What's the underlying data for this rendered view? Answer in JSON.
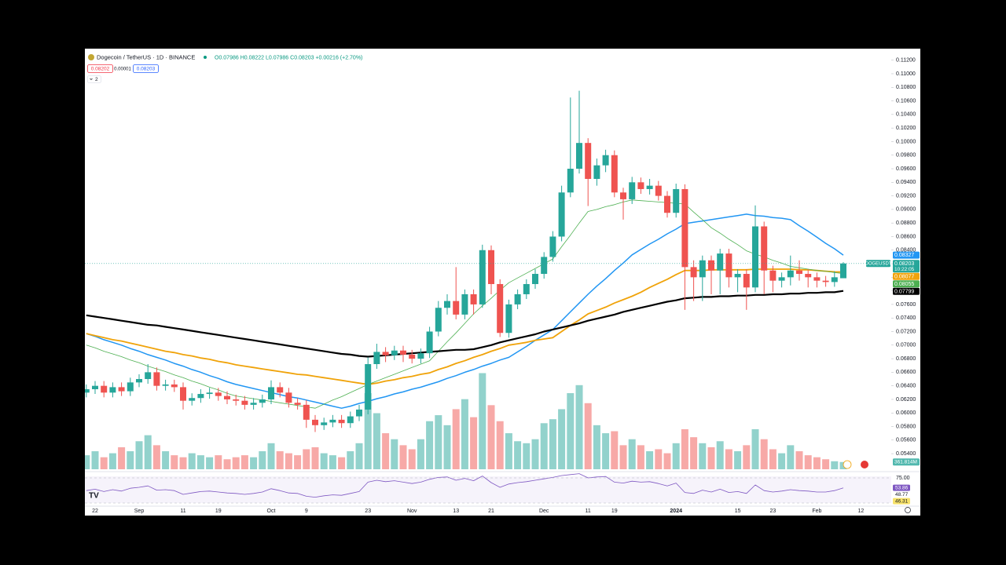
{
  "header": {
    "symbol": "Dogecoin / TetherUS · 1D · BINANCE",
    "ohlc": "O0.07986 H0.08222 L0.07986 C0.08203 +0.00216 (+2.70%)",
    "bid": "0.08202",
    "spread": "0.00001",
    "ask": "0.08203",
    "hidden_indicators": "2"
  },
  "chart_data": {
    "type": "candlestick",
    "categories": [
      null,
      "22",
      null,
      null,
      null,
      null,
      "Sep",
      null,
      null,
      null,
      null,
      "11",
      null,
      null,
      null,
      "19",
      null,
      null,
      null,
      null,
      null,
      "Oct",
      null,
      null,
      null,
      "9",
      null,
      null,
      null,
      null,
      null,
      null,
      "23",
      null,
      null,
      null,
      null,
      "Nov",
      null,
      null,
      null,
      null,
      "13",
      null,
      null,
      null,
      "21",
      null,
      null,
      null,
      null,
      null,
      "Dec",
      null,
      null,
      null,
      null,
      "11",
      null,
      null,
      "19",
      null,
      null,
      null,
      null,
      null,
      null,
      "2024",
      null,
      null,
      null,
      null,
      null,
      null,
      "15",
      null,
      null,
      null,
      "23",
      null,
      null,
      null,
      null,
      "Feb",
      null,
      null,
      null,
      null,
      "12"
    ],
    "open": [
      0.063,
      0.0635,
      0.064,
      0.063,
      0.0638,
      0.0632,
      0.0645,
      0.065,
      0.066,
      0.064,
      0.0642,
      0.0638,
      0.0618,
      0.0622,
      0.0628,
      0.063,
      0.0625,
      0.062,
      0.0618,
      0.0612,
      0.0615,
      0.062,
      0.0638,
      0.063,
      0.0615,
      0.0612,
      0.059,
      0.0582,
      0.0586,
      0.059,
      0.0585,
      0.0595,
      0.0605,
      0.0672,
      0.069,
      0.0685,
      0.0692,
      0.0686,
      0.068,
      0.0688,
      0.072,
      0.0755,
      0.0765,
      0.0745,
      0.0775,
      0.076,
      0.084,
      0.079,
      0.0718,
      0.076,
      0.0775,
      0.079,
      0.0805,
      0.083,
      0.086,
      0.0925,
      0.096,
      0.0998,
      0.0945,
      0.0965,
      0.098,
      0.0925,
      0.0915,
      0.094,
      0.093,
      0.0935,
      0.092,
      0.0895,
      0.093,
      0.0815,
      0.08,
      0.0825,
      0.081,
      0.0835,
      0.08,
      0.0805,
      0.0785,
      0.0875,
      0.081,
      0.0795,
      0.08,
      0.081,
      0.0805,
      0.08,
      0.0795,
      0.0793,
      0.07986,
      null,
      null
    ],
    "high": [
      0.0642,
      0.0647,
      0.0647,
      0.0645,
      0.0645,
      0.0652,
      0.0657,
      0.0672,
      0.0667,
      0.0649,
      0.0649,
      0.0645,
      0.0629,
      0.0635,
      0.0637,
      0.0637,
      0.0632,
      0.0627,
      0.0625,
      0.0622,
      0.0627,
      0.0648,
      0.0645,
      0.0637,
      0.0622,
      0.0619,
      0.0597,
      0.0593,
      0.0597,
      0.0597,
      0.0602,
      0.0612,
      0.0682,
      0.0702,
      0.0697,
      0.0699,
      0.0699,
      0.0693,
      0.0695,
      0.0727,
      0.0765,
      0.0775,
      0.0815,
      0.0782,
      0.0782,
      0.0848,
      0.0847,
      0.0797,
      0.0767,
      0.0782,
      0.0797,
      0.0812,
      0.0837,
      0.0868,
      0.0935,
      0.1065,
      0.1075,
      0.1005,
      0.0975,
      0.0988,
      0.0987,
      0.0932,
      0.0948,
      0.0947,
      0.0945,
      0.0942,
      0.0927,
      0.0938,
      0.0937,
      0.0825,
      0.0832,
      0.0832,
      0.0842,
      0.0842,
      0.0812,
      0.0812,
      0.0906,
      0.0882,
      0.0817,
      0.0807,
      0.0832,
      0.0825,
      0.0812,
      0.0807,
      0.0802,
      0.0809,
      0.08222,
      null,
      null
    ],
    "low": [
      0.0623,
      0.0628,
      0.0623,
      0.0623,
      0.0625,
      0.0625,
      0.0638,
      0.0643,
      0.0633,
      0.0633,
      0.0631,
      0.0605,
      0.0611,
      0.0615,
      0.0621,
      0.0618,
      0.0613,
      0.0611,
      0.0605,
      0.0605,
      0.0608,
      0.0613,
      0.0623,
      0.0608,
      0.0605,
      0.0578,
      0.0572,
      0.0575,
      0.0579,
      0.0578,
      0.0578,
      0.0588,
      0.0598,
      0.0665,
      0.0675,
      0.0678,
      0.0675,
      0.0673,
      0.0673,
      0.0681,
      0.0713,
      0.0745,
      0.0738,
      0.0738,
      0.0745,
      0.0755,
      0.0775,
      0.0712,
      0.0711,
      0.0753,
      0.0768,
      0.0783,
      0.0798,
      0.0823,
      0.0853,
      0.0918,
      0.0953,
      0.0905,
      0.0935,
      0.0955,
      0.0918,
      0.0885,
      0.0908,
      0.0923,
      0.0922,
      0.0913,
      0.0888,
      0.0888,
      0.0752,
      0.0765,
      0.0765,
      0.0775,
      0.0775,
      0.0785,
      0.0778,
      0.0752,
      0.0778,
      0.0775,
      0.0778,
      0.0785,
      0.0788,
      0.0795,
      0.0785,
      0.0785,
      0.0786,
      0.0786,
      0.07986,
      null,
      null
    ],
    "close": [
      0.0635,
      0.064,
      0.063,
      0.0638,
      0.0632,
      0.0645,
      0.065,
      0.066,
      0.064,
      0.0642,
      0.0638,
      0.0618,
      0.0622,
      0.0628,
      0.063,
      0.0625,
      0.062,
      0.0618,
      0.0612,
      0.0615,
      0.062,
      0.0638,
      0.063,
      0.0615,
      0.0612,
      0.059,
      0.0582,
      0.0586,
      0.059,
      0.0585,
      0.0595,
      0.0605,
      0.0672,
      0.069,
      0.0685,
      0.0692,
      0.0686,
      0.068,
      0.0688,
      0.072,
      0.0755,
      0.0765,
      0.0745,
      0.0775,
      0.076,
      0.084,
      0.079,
      0.0718,
      0.076,
      0.0775,
      0.079,
      0.0805,
      0.083,
      0.086,
      0.0925,
      0.096,
      0.0998,
      0.0945,
      0.0965,
      0.098,
      0.0925,
      0.0915,
      0.094,
      0.093,
      0.0935,
      0.092,
      0.0895,
      0.093,
      0.0815,
      0.08,
      0.0825,
      0.081,
      0.0835,
      0.08,
      0.0805,
      0.0785,
      0.0875,
      0.081,
      0.0795,
      0.08,
      0.081,
      0.0805,
      0.08,
      0.0795,
      0.0793,
      0.08,
      0.08203,
      null,
      null
    ],
    "up_color": "#26a69a",
    "down_color": "#ef5350",
    "ylim": [
      0.0517,
      0.1137
    ],
    "yticks": [
      {
        "value": 0.054,
        "label": "0.05400"
      },
      {
        "value": 0.056,
        "label": "0.05600"
      },
      {
        "value": 0.058,
        "label": "0.05800"
      },
      {
        "value": 0.06,
        "label": "0.06000"
      },
      {
        "value": 0.062,
        "label": "0.06200"
      },
      {
        "value": 0.064,
        "label": "0.06400"
      },
      {
        "value": 0.066,
        "label": "0.06600"
      },
      {
        "value": 0.068,
        "label": "0.06800"
      },
      {
        "value": 0.07,
        "label": "0.07000"
      },
      {
        "value": 0.072,
        "label": "0.07200"
      },
      {
        "value": 0.074,
        "label": "0.07400"
      },
      {
        "value": 0.076,
        "label": "0.07600"
      },
      {
        "value": 0.078,
        "label": "0.07800"
      },
      {
        "value": 0.08,
        "label": "0.08000"
      },
      {
        "value": 0.082,
        "label": "0.08200"
      },
      {
        "value": 0.084,
        "label": "0.08400"
      },
      {
        "value": 0.086,
        "label": "0.08600"
      },
      {
        "value": 0.088,
        "label": "0.08800"
      },
      {
        "value": 0.09,
        "label": "0.09000"
      },
      {
        "value": 0.092,
        "label": "0.09200"
      },
      {
        "value": 0.094,
        "label": "0.09400"
      },
      {
        "value": 0.096,
        "label": "0.09600"
      },
      {
        "value": 0.098,
        "label": "0.09800"
      },
      {
        "value": 0.1,
        "label": "0.10000"
      },
      {
        "value": 0.102,
        "label": "0.10200"
      },
      {
        "value": 0.104,
        "label": "0.10400"
      },
      {
        "value": 0.106,
        "label": "0.10600"
      },
      {
        "value": 0.108,
        "label": "0.10800"
      },
      {
        "value": 0.11,
        "label": "0.11000"
      },
      {
        "value": 0.112,
        "label": "0.11200"
      }
    ],
    "symbol_tag": "DOGEUSDT",
    "countdown": "10:22:05",
    "ma": [
      {
        "color": "#2196f3",
        "values": [
          0.0717,
          0.0713,
          0.0708,
          0.0704,
          0.07,
          0.0695,
          0.0691,
          0.0686,
          0.0682,
          0.0678,
          0.0673,
          0.0669,
          0.0664,
          0.066,
          0.0655,
          0.0651,
          0.0646,
          0.0642,
          0.0639,
          0.0636,
          0.0633,
          0.063,
          0.0627,
          0.0624,
          0.0622,
          0.0619,
          0.0616,
          0.0613,
          0.061,
          0.0607,
          0.061,
          0.0614,
          0.0617,
          0.0621,
          0.0624,
          0.0628,
          0.0631,
          0.0635,
          0.0638,
          0.0642,
          0.0646,
          0.0651,
          0.0655,
          0.066,
          0.0664,
          0.0669,
          0.0673,
          0.0678,
          0.0682,
          0.069,
          0.0698,
          0.0707,
          0.0715,
          0.0723,
          0.0736,
          0.0749,
          0.0762,
          0.0775,
          0.0787,
          0.0798,
          0.081,
          0.0821,
          0.0833,
          0.0841,
          0.0849,
          0.0856,
          0.0864,
          0.0871,
          0.0879,
          0.0881,
          0.0883,
          0.0885,
          0.0887,
          0.0889,
          0.0891,
          0.0893,
          0.0891,
          0.089,
          0.0888,
          0.0887,
          0.0885,
          0.0876,
          0.0868,
          0.0859,
          0.085,
          0.0842,
          0.08327,
          null,
          null
        ]
      },
      {
        "color": "#f0a30a",
        "values": [
          0.0717,
          0.0714,
          0.0711,
          0.0708,
          0.0706,
          0.0703,
          0.07,
          0.0697,
          0.0694,
          0.0691,
          0.0689,
          0.0686,
          0.0684,
          0.0681,
          0.0679,
          0.0676,
          0.0674,
          0.0671,
          0.0669,
          0.0667,
          0.0665,
          0.0663,
          0.0661,
          0.0659,
          0.0657,
          0.0656,
          0.0654,
          0.0652,
          0.065,
          0.0648,
          0.0646,
          0.0644,
          0.0642,
          0.0644,
          0.0647,
          0.0649,
          0.0652,
          0.0654,
          0.0657,
          0.0659,
          0.0664,
          0.0668,
          0.0673,
          0.0677,
          0.0682,
          0.0686,
          0.0691,
          0.0695,
          0.07,
          0.0702,
          0.0704,
          0.0707,
          0.0709,
          0.0711,
          0.072,
          0.0729,
          0.0737,
          0.0746,
          0.0751,
          0.0756,
          0.0762,
          0.0767,
          0.0772,
          0.0778,
          0.0785,
          0.0791,
          0.0797,
          0.0804,
          0.081,
          0.081,
          0.081,
          0.0811,
          0.0811,
          0.0811,
          0.0811,
          0.0811,
          0.0812,
          0.0812,
          0.0812,
          0.0812,
          0.0812,
          0.0811,
          0.0811,
          0.081,
          0.0809,
          0.0808,
          0.08077,
          null,
          null
        ]
      },
      {
        "color": "#4caf50",
        "values": [
          0.07,
          0.0696,
          0.0691,
          0.0687,
          0.0683,
          0.0678,
          0.0674,
          0.0669,
          0.0665,
          0.0661,
          0.0656,
          0.0652,
          0.0647,
          0.0643,
          0.0638,
          0.0634,
          0.0629,
          0.0625,
          0.0623,
          0.0621,
          0.0619,
          0.0617,
          0.0615,
          0.0613,
          0.0611,
          0.0609,
          0.0607,
          0.0613,
          0.0619,
          0.0624,
          0.063,
          0.0636,
          0.0642,
          0.0647,
          0.0652,
          0.0657,
          0.0662,
          0.0667,
          0.0672,
          0.0677,
          0.0691,
          0.0705,
          0.0718,
          0.0732,
          0.0746,
          0.0758,
          0.0769,
          0.0781,
          0.0792,
          0.0799,
          0.0806,
          0.0813,
          0.082,
          0.0827,
          0.0845,
          0.0862,
          0.088,
          0.0897,
          0.09,
          0.0904,
          0.0907,
          0.0911,
          0.0914,
          0.0913,
          0.0912,
          0.0911,
          0.091,
          0.0909,
          0.0908,
          0.0896,
          0.0885,
          0.0873,
          0.0865,
          0.0856,
          0.0848,
          0.0839,
          0.0834,
          0.083,
          0.0825,
          0.0821,
          0.0816,
          0.0814,
          0.0812,
          0.081,
          0.0809,
          0.0807,
          0.08055,
          null,
          null
        ]
      },
      {
        "color": "#000000",
        "values": [
          0.0744,
          0.0742,
          0.074,
          0.0738,
          0.0736,
          0.0734,
          0.0732,
          0.073,
          0.0729,
          0.0727,
          0.0725,
          0.0723,
          0.0721,
          0.0719,
          0.0717,
          0.0715,
          0.0713,
          0.0711,
          0.0709,
          0.0707,
          0.0705,
          0.0703,
          0.0701,
          0.0699,
          0.0697,
          0.0695,
          0.0693,
          0.0691,
          0.0689,
          0.0687,
          0.0686,
          0.0684,
          0.0683,
          0.0684,
          0.0685,
          0.0686,
          0.0687,
          0.0688,
          0.0689,
          0.069,
          0.0691,
          0.0692,
          0.0693,
          0.0693,
          0.0694,
          0.0697,
          0.07,
          0.0704,
          0.0707,
          0.071,
          0.0713,
          0.0716,
          0.072,
          0.0723,
          0.0726,
          0.0729,
          0.0732,
          0.0736,
          0.0739,
          0.0742,
          0.0745,
          0.0749,
          0.0752,
          0.0755,
          0.0758,
          0.0761,
          0.0764,
          0.0766,
          0.0769,
          0.077,
          0.0771,
          0.0771,
          0.0772,
          0.0772,
          0.0773,
          0.0773,
          0.0774,
          0.0774,
          0.0775,
          0.0775,
          0.0776,
          0.0776,
          0.0777,
          0.0777,
          0.0778,
          0.0778,
          0.07799,
          null,
          null
        ]
      }
    ],
    "volume": {
      "ylim": [
        0,
        21000
      ],
      "last_value_label": "361.814M",
      "values": [
        700,
        900,
        600,
        800,
        1100,
        900,
        1400,
        1700,
        1200,
        900,
        700,
        600,
        800,
        700,
        600,
        700,
        500,
        600,
        700,
        600,
        900,
        1300,
        900,
        800,
        700,
        1000,
        1100,
        800,
        700,
        600,
        900,
        1300,
        3800,
        2800,
        1800,
        1500,
        1200,
        1000,
        1500,
        2400,
        2700,
        2200,
        3000,
        3500,
        2600,
        4800,
        3200,
        2400,
        1800,
        1400,
        1300,
        1500,
        2300,
        2500,
        3000,
        3800,
        4200,
        3300,
        2200,
        1800,
        1900,
        1200,
        1500,
        1200,
        900,
        1000,
        800,
        1300,
        2000,
        1600,
        1300,
        1100,
        1400,
        1000,
        900,
        1200,
        2000,
        1500,
        1000,
        800,
        1200,
        900,
        700,
        600,
        500,
        400,
        361.814,
        null,
        null
      ]
    },
    "rsi": {
      "color": "#7e57c2",
      "ylim": [
        15,
        85
      ],
      "yticks": [
        {
          "value": 75,
          "label": "75.00"
        }
      ],
      "axis_labels": [
        48.77,
        46.31
      ],
      "values": [
        48,
        51,
        46,
        50,
        47,
        53,
        55,
        58,
        49,
        50,
        48,
        40,
        43,
        46,
        47,
        45,
        43,
        42,
        40,
        42,
        45,
        52,
        48,
        43,
        42,
        36,
        34,
        37,
        39,
        38,
        42,
        46,
        66,
        70,
        67,
        69,
        66,
        63,
        66,
        72,
        76,
        77,
        70,
        74,
        69,
        79,
        65,
        55,
        62,
        65,
        67,
        70,
        73,
        76,
        80,
        82,
        84,
        75,
        77,
        78,
        66,
        64,
        68,
        66,
        67,
        63,
        58,
        64,
        44,
        42,
        49,
        45,
        51,
        44,
        46,
        42,
        60,
        48,
        45,
        47,
        50,
        48,
        47,
        45,
        45,
        48,
        53.86,
        null,
        null
      ]
    }
  }
}
